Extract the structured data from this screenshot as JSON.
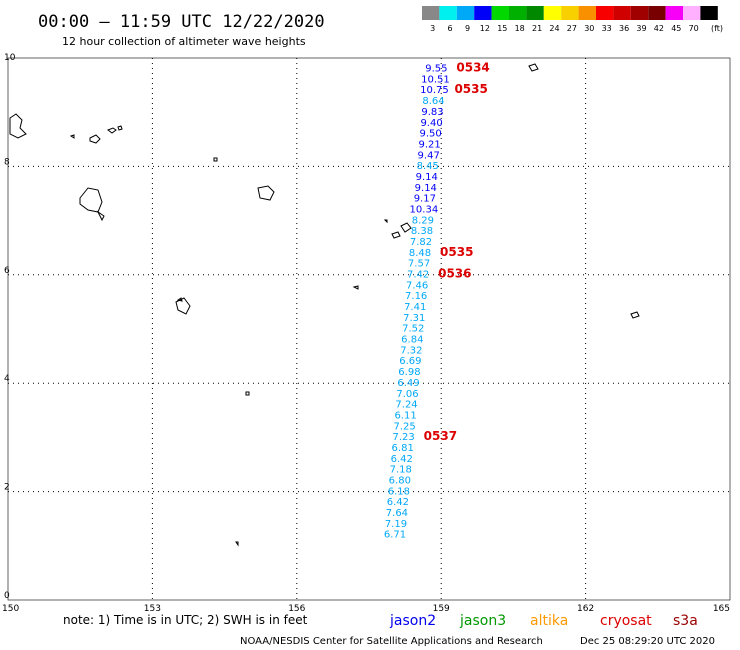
{
  "header": {
    "title": "00:00 – 11:59 UTC 12/22/2020",
    "subtitle": "12 hour collection of altimeter wave heights"
  },
  "legend": {
    "unit": "(ft)",
    "bins": [
      {
        "label": "3",
        "color": "#888888"
      },
      {
        "label": "6",
        "color": "#00f0f0"
      },
      {
        "label": "9",
        "color": "#00a8f8"
      },
      {
        "label": "12",
        "color": "#0000f8"
      },
      {
        "label": "15",
        "color": "#00d800"
      },
      {
        "label": "18",
        "color": "#00b000"
      },
      {
        "label": "21",
        "color": "#008800"
      },
      {
        "label": "24",
        "color": "#ffff00"
      },
      {
        "label": "27",
        "color": "#f8d000"
      },
      {
        "label": "30",
        "color": "#f89000"
      },
      {
        "label": "33",
        "color": "#f80000"
      },
      {
        "label": "36",
        "color": "#d00000"
      },
      {
        "label": "39",
        "color": "#a00000"
      },
      {
        "label": "42",
        "color": "#780000"
      },
      {
        "label": "45",
        "color": "#f800f8"
      },
      {
        "label": "70",
        "color": "#ffb0ff"
      },
      {
        "label": "",
        "color": "#000000"
      }
    ]
  },
  "chart_data": {
    "type": "scatter",
    "xlim": [
      150,
      165
    ],
    "ylim": [
      0,
      10
    ],
    "x_ticks": [
      "150",
      "153",
      "156",
      "159",
      "162",
      "165"
    ],
    "y_ticks": [
      "0",
      "2",
      "4",
      "6",
      "8",
      "10"
    ],
    "grid": true,
    "track": {
      "satellite": "jason2",
      "points": [
        {
          "x": 158.9,
          "y": 9.75,
          "swh": "9.55"
        },
        {
          "x": 158.88,
          "y": 9.55,
          "swh": "10.51"
        },
        {
          "x": 158.86,
          "y": 9.35,
          "swh": "10.75"
        },
        {
          "x": 158.84,
          "y": 9.15,
          "swh": "8.64"
        },
        {
          "x": 158.82,
          "y": 8.95,
          "swh": "9.83"
        },
        {
          "x": 158.8,
          "y": 8.75,
          "swh": "9.40"
        },
        {
          "x": 158.78,
          "y": 8.55,
          "swh": "9.50"
        },
        {
          "x": 158.76,
          "y": 8.35,
          "swh": "9.21"
        },
        {
          "x": 158.74,
          "y": 8.15,
          "swh": "9.47"
        },
        {
          "x": 158.72,
          "y": 7.95,
          "swh": "8.45"
        },
        {
          "x": 158.7,
          "y": 7.75,
          "swh": "9.14"
        },
        {
          "x": 158.68,
          "y": 7.55,
          "swh": "9.14"
        },
        {
          "x": 158.66,
          "y": 7.35,
          "swh": "9.17"
        },
        {
          "x": 158.64,
          "y": 7.15,
          "swh": "10.34"
        },
        {
          "x": 158.62,
          "y": 6.95,
          "swh": "8.29"
        },
        {
          "x": 158.6,
          "y": 6.75,
          "swh": "8.38"
        },
        {
          "x": 158.58,
          "y": 6.55,
          "swh": "7.82"
        },
        {
          "x": 158.56,
          "y": 6.35,
          "swh": "8.48"
        },
        {
          "x": 158.54,
          "y": 6.15,
          "swh": "7.57"
        },
        {
          "x": 158.52,
          "y": 5.95,
          "swh": "7.42"
        },
        {
          "x": 158.5,
          "y": 5.75,
          "swh": "7.46"
        },
        {
          "x": 158.48,
          "y": 5.55,
          "swh": "7.16"
        },
        {
          "x": 158.46,
          "y": 5.35,
          "swh": "7.41"
        },
        {
          "x": 158.44,
          "y": 5.15,
          "swh": "7.31"
        },
        {
          "x": 158.42,
          "y": 4.95,
          "swh": "7.52"
        },
        {
          "x": 158.4,
          "y": 4.75,
          "swh": "6.84"
        },
        {
          "x": 158.38,
          "y": 4.55,
          "swh": "7.32"
        },
        {
          "x": 158.36,
          "y": 4.35,
          "swh": "6.69"
        },
        {
          "x": 158.34,
          "y": 4.15,
          "swh": "6.98"
        },
        {
          "x": 158.32,
          "y": 3.95,
          "swh": "6.49"
        },
        {
          "x": 158.3,
          "y": 3.75,
          "swh": "7.06"
        },
        {
          "x": 158.28,
          "y": 3.55,
          "swh": "7.24"
        },
        {
          "x": 158.26,
          "y": 3.35,
          "swh": "6.11"
        },
        {
          "x": 158.24,
          "y": 3.15,
          "swh": "7.25"
        },
        {
          "x": 158.22,
          "y": 2.95,
          "swh": "7.23"
        },
        {
          "x": 158.2,
          "y": 2.75,
          "swh": "6.81"
        },
        {
          "x": 158.18,
          "y": 2.55,
          "swh": "6.42"
        },
        {
          "x": 158.16,
          "y": 2.35,
          "swh": "7.18"
        },
        {
          "x": 158.14,
          "y": 2.15,
          "swh": "6.80"
        },
        {
          "x": 158.12,
          "y": 1.95,
          "swh": "6.18"
        },
        {
          "x": 158.1,
          "y": 1.75,
          "swh": "6.42"
        },
        {
          "x": 158.08,
          "y": 1.55,
          "swh": "7.64"
        },
        {
          "x": 158.06,
          "y": 1.35,
          "swh": "7.19"
        },
        {
          "x": 158.04,
          "y": 1.15,
          "swh": "6.71"
        }
      ],
      "time_labels": [
        {
          "point": 0,
          "text": "0534"
        },
        {
          "point": 2,
          "text": "0535"
        },
        {
          "point": 17,
          "text": "0535"
        },
        {
          "point": 19,
          "text": "0536"
        },
        {
          "point": 34,
          "text": "0537"
        }
      ]
    }
  },
  "note": "note: 1) Time is in UTC; 2) SWH is in feet",
  "satellites": [
    {
      "name": "jason2",
      "color": "#0000ee"
    },
    {
      "name": "jason3",
      "color": "#009900"
    },
    {
      "name": "altika",
      "color": "#ff9900"
    },
    {
      "name": "cryosat",
      "color": "#dd0000"
    },
    {
      "name": "s3a",
      "color": "#990000"
    }
  ],
  "footer": {
    "source": "NOAA/NESDIS Center for Satellite Applications and Research",
    "timestamp": "Dec 25 08:29:20 UTC 2020"
  }
}
